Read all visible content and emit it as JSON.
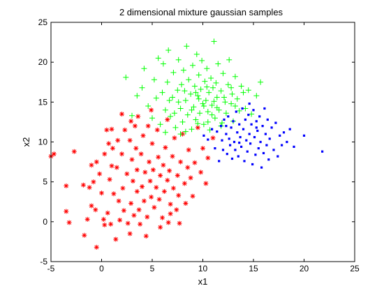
{
  "chart_data": {
    "type": "scatter",
    "title": "2 dimensional mixture gaussian samples",
    "xlabel": "x1",
    "ylabel": "x2",
    "xlim": [
      -5,
      25
    ],
    "ylim": [
      -5,
      25
    ],
    "xticks": [
      "-5",
      "0",
      "5",
      "10",
      "15",
      "20",
      "25"
    ],
    "yticks": [
      "-5",
      "0",
      "5",
      "10",
      "15",
      "20",
      "25"
    ],
    "grid": false,
    "legend": "none",
    "series": [
      {
        "marker": "asterisk",
        "color": "#ff0000",
        "points": [
          [
            -5,
            8.2
          ],
          [
            -4.7,
            8.5
          ],
          [
            -3.5,
            4.5
          ],
          [
            -3.2,
            -0.1
          ],
          [
            -3.5,
            1.3
          ],
          [
            -2.7,
            8.8
          ],
          [
            -1.8,
            4.6
          ],
          [
            -1.4,
            0.3
          ],
          [
            -1.7,
            -1.7
          ],
          [
            -1.0,
            7.1
          ],
          [
            -1.2,
            4.3
          ],
          [
            -1.0,
            2.0
          ],
          [
            -0.5,
            -3.2
          ],
          [
            -0.5,
            7.5
          ],
          [
            -0.8,
            5.0
          ],
          [
            -0.2,
            6.0
          ],
          [
            0.0,
            3.6
          ],
          [
            0.2,
            0.3
          ],
          [
            0.3,
            8.5
          ],
          [
            0.5,
            11.5
          ],
          [
            0.6,
            1.1
          ],
          [
            0.8,
            5.3
          ],
          [
            1.0,
            11.6
          ],
          [
            0.9,
            -0.3
          ],
          [
            1.1,
            9.2
          ],
          [
            1.0,
            7.0
          ],
          [
            1.2,
            3.5
          ],
          [
            1.4,
            -2.2
          ],
          [
            1.5,
            6.8
          ],
          [
            1.7,
            2.6
          ],
          [
            1.8,
            0.2
          ],
          [
            2.0,
            13.5
          ],
          [
            2.0,
            8.5
          ],
          [
            2.1,
            4.2
          ],
          [
            2.2,
            1.4
          ],
          [
            2.3,
            11.5
          ],
          [
            2.5,
            6.0
          ],
          [
            2.6,
            -0.2
          ],
          [
            2.8,
            10.2
          ],
          [
            2.9,
            2.3
          ],
          [
            3.0,
            7.8
          ],
          [
            3.1,
            5.1
          ],
          [
            3.3,
            12.0
          ],
          [
            3.2,
            0.8
          ],
          [
            3.4,
            9.2
          ],
          [
            3.5,
            3.8
          ],
          [
            3.5,
            6.5
          ],
          [
            3.7,
            1.5
          ],
          [
            3.9,
            8.5
          ],
          [
            4.0,
            4.4
          ],
          [
            4.1,
            10.8
          ],
          [
            4.2,
            2.6
          ],
          [
            4.3,
            6.2
          ],
          [
            4.5,
            0.6
          ],
          [
            4.6,
            12.0
          ],
          [
            4.7,
            7.5
          ],
          [
            4.8,
            5.1
          ],
          [
            4.9,
            3.1
          ],
          [
            5.0,
            9.8
          ],
          [
            5.1,
            6.5
          ],
          [
            5.2,
            1.8
          ],
          [
            5.4,
            4.3
          ],
          [
            5.5,
            11.5
          ],
          [
            5.6,
            8.1
          ],
          [
            5.7,
            2.8
          ],
          [
            5.8,
            5.8
          ],
          [
            6.0,
            0.5
          ],
          [
            6.1,
            7.1
          ],
          [
            6.2,
            3.8
          ],
          [
            6.3,
            9.3
          ],
          [
            6.5,
            5.2
          ],
          [
            6.6,
            -0.1
          ],
          [
            6.7,
            6.4
          ],
          [
            6.8,
            2.2
          ],
          [
            7.0,
            8.2
          ],
          [
            7.1,
            4.2
          ],
          [
            7.2,
            10.5
          ],
          [
            7.4,
            1.5
          ],
          [
            7.5,
            5.8
          ],
          [
            7.6,
            3.3
          ],
          [
            7.8,
            7.5
          ],
          [
            8.0,
            11.0
          ],
          [
            8.2,
            4.8
          ],
          [
            8.3,
            2.3
          ],
          [
            8.5,
            6.8
          ],
          [
            8.6,
            9.0
          ],
          [
            8.8,
            5.5
          ],
          [
            9.0,
            3.2
          ],
          [
            9.2,
            7.4
          ],
          [
            9.5,
            11.8
          ],
          [
            9.8,
            6.2
          ],
          [
            10.0,
            9.2
          ],
          [
            10.3,
            4.8
          ],
          [
            10.5,
            8.0
          ],
          [
            11.0,
            10.5
          ],
          [
            7.7,
            -0.2
          ],
          [
            6.8,
            1.0
          ],
          [
            3.8,
            -0.3
          ],
          [
            2.8,
            -1.5
          ],
          [
            0.3,
            -0.4
          ],
          [
            -0.6,
            1.5
          ],
          [
            4.4,
            -1.8
          ],
          [
            5.8,
            -0.7
          ],
          [
            1.6,
            10.2
          ],
          [
            0.7,
            9.8
          ],
          [
            3.6,
            13.2
          ],
          [
            2.9,
            12.6
          ],
          [
            6.5,
            12.8
          ],
          [
            4.9,
            14.0
          ]
        ]
      },
      {
        "marker": "plus",
        "color": "#00ff00",
        "points": [
          [
            2.4,
            18.1
          ],
          [
            3.0,
            13.3
          ],
          [
            3.5,
            15.8
          ],
          [
            4.0,
            16.8
          ],
          [
            4.2,
            19.2
          ],
          [
            4.6,
            14.5
          ],
          [
            5.0,
            13.0
          ],
          [
            5.2,
            17.8
          ],
          [
            5.4,
            15.5
          ],
          [
            5.6,
            20.5
          ],
          [
            5.8,
            12.2
          ],
          [
            6.0,
            16.2
          ],
          [
            6.1,
            19.8
          ],
          [
            6.3,
            14.0
          ],
          [
            6.5,
            17.5
          ],
          [
            6.6,
            21.5
          ],
          [
            6.8,
            13.2
          ],
          [
            7.0,
            15.6
          ],
          [
            7.1,
            18.7
          ],
          [
            7.3,
            11.8
          ],
          [
            7.5,
            16.5
          ],
          [
            7.6,
            20.3
          ],
          [
            7.8,
            14.2
          ],
          [
            7.9,
            17.2
          ],
          [
            8.0,
            12.5
          ],
          [
            8.1,
            19.0
          ],
          [
            8.3,
            15.2
          ],
          [
            8.4,
            22.0
          ],
          [
            8.5,
            13.4
          ],
          [
            8.6,
            17.8
          ],
          [
            8.8,
            16.0
          ],
          [
            8.9,
            11.6
          ],
          [
            9.0,
            19.6
          ],
          [
            9.1,
            14.4
          ],
          [
            9.2,
            17.0
          ],
          [
            9.3,
            12.8
          ],
          [
            9.4,
            21.0
          ],
          [
            9.5,
            15.8
          ],
          [
            9.6,
            18.4
          ],
          [
            9.7,
            13.6
          ],
          [
            9.8,
            16.6
          ],
          [
            9.9,
            20.2
          ],
          [
            10.0,
            14.8
          ],
          [
            10.1,
            12.2
          ],
          [
            10.2,
            17.6
          ],
          [
            10.3,
            15.2
          ],
          [
            10.4,
            19.2
          ],
          [
            10.5,
            13.8
          ],
          [
            10.6,
            16.2
          ],
          [
            10.7,
            11.5
          ],
          [
            10.8,
            18.0
          ],
          [
            10.9,
            14.6
          ],
          [
            11.0,
            16.8
          ],
          [
            11.1,
            22.6
          ],
          [
            11.2,
            13.0
          ],
          [
            11.3,
            17.4
          ],
          [
            11.4,
            15.6
          ],
          [
            11.5,
            19.8
          ],
          [
            11.6,
            14.0
          ],
          [
            11.8,
            16.4
          ],
          [
            11.9,
            12.4
          ],
          [
            12.0,
            18.6
          ],
          [
            12.2,
            15.0
          ],
          [
            12.3,
            13.6
          ],
          [
            12.5,
            17.2
          ],
          [
            12.6,
            20.3
          ],
          [
            12.8,
            14.8
          ],
          [
            12.9,
            16.0
          ],
          [
            13.0,
            12.6
          ],
          [
            13.2,
            18.2
          ],
          [
            13.4,
            15.4
          ],
          [
            13.6,
            13.9
          ],
          [
            13.8,
            17.0
          ],
          [
            14.0,
            16.2
          ],
          [
            14.2,
            14.2
          ],
          [
            14.5,
            16.5
          ],
          [
            14.8,
            13.5
          ],
          [
            15.3,
            15.8
          ],
          [
            15.7,
            17.5
          ],
          [
            8.2,
            16.4
          ],
          [
            9.6,
            15.4
          ],
          [
            10.4,
            16.9
          ],
          [
            11.1,
            15.1
          ],
          [
            8.9,
            14.0
          ],
          [
            10.9,
            13.4
          ],
          [
            9.3,
            16.2
          ],
          [
            10.1,
            14.5
          ],
          [
            11.4,
            14.3
          ],
          [
            12.1,
            15.6
          ],
          [
            7.6,
            15.0
          ],
          [
            7.2,
            13.6
          ],
          [
            6.7,
            15.2
          ],
          [
            12.8,
            16.8
          ],
          [
            13.2,
            14.5
          ],
          [
            11.8,
            12.0
          ],
          [
            10.5,
            12.5
          ],
          [
            9.5,
            12.3
          ],
          [
            8.3,
            11.3
          ],
          [
            7.8,
            11.0
          ],
          [
            6.3,
            11.2
          ]
        ]
      },
      {
        "marker": "point",
        "color": "#0000ff",
        "points": [
          [
            10.1,
            10.8
          ],
          [
            10.5,
            10.3
          ],
          [
            10.9,
            11.6
          ],
          [
            11.2,
            9.2
          ],
          [
            11.4,
            11.3
          ],
          [
            11.6,
            7.6
          ],
          [
            11.8,
            12.0
          ],
          [
            11.9,
            10.2
          ],
          [
            12.0,
            9.0
          ],
          [
            12.1,
            12.8
          ],
          [
            12.3,
            11.0
          ],
          [
            12.4,
            8.5
          ],
          [
            12.5,
            13.2
          ],
          [
            12.6,
            10.4
          ],
          [
            12.7,
            9.6
          ],
          [
            12.8,
            11.8
          ],
          [
            12.9,
            7.9
          ],
          [
            13.0,
            12.6
          ],
          [
            13.1,
            10.0
          ],
          [
            13.2,
            9.0
          ],
          [
            13.3,
            13.8
          ],
          [
            13.4,
            11.2
          ],
          [
            13.5,
            8.2
          ],
          [
            13.6,
            12.2
          ],
          [
            13.7,
            10.6
          ],
          [
            13.8,
            9.4
          ],
          [
            13.9,
            14.2
          ],
          [
            14.0,
            11.6
          ],
          [
            14.1,
            7.6
          ],
          [
            14.2,
            12.8
          ],
          [
            14.3,
            10.2
          ],
          [
            14.4,
            8.8
          ],
          [
            14.5,
            13.4
          ],
          [
            14.6,
            11.0
          ],
          [
            14.7,
            9.8
          ],
          [
            14.8,
            12.2
          ],
          [
            14.9,
            7.2
          ],
          [
            15.0,
            14.0
          ],
          [
            15.1,
            10.6
          ],
          [
            15.2,
            8.4
          ],
          [
            15.3,
            12.6
          ],
          [
            15.4,
            11.4
          ],
          [
            15.5,
            9.2
          ],
          [
            15.6,
            13.2
          ],
          [
            15.7,
            10.0
          ],
          [
            15.8,
            6.8
          ],
          [
            15.9,
            12.0
          ],
          [
            16.0,
            8.6
          ],
          [
            16.1,
            14.2
          ],
          [
            16.2,
            11.0
          ],
          [
            16.3,
            9.6
          ],
          [
            16.4,
            12.8
          ],
          [
            16.5,
            7.8
          ],
          [
            16.6,
            10.4
          ],
          [
            16.8,
            11.8
          ],
          [
            17.0,
            9.0
          ],
          [
            17.2,
            12.4
          ],
          [
            17.4,
            8.2
          ],
          [
            17.6,
            10.8
          ],
          [
            17.8,
            9.6
          ],
          [
            18.0,
            11.2
          ],
          [
            18.3,
            10.0
          ],
          [
            18.6,
            11.6
          ],
          [
            19.0,
            9.4
          ],
          [
            20.0,
            10.8
          ],
          [
            21.8,
            8.8
          ],
          [
            14.6,
            14.8
          ],
          [
            15.3,
            11.8
          ],
          [
            13.6,
            9.9
          ],
          [
            12.3,
            12.0
          ]
        ]
      }
    ]
  }
}
